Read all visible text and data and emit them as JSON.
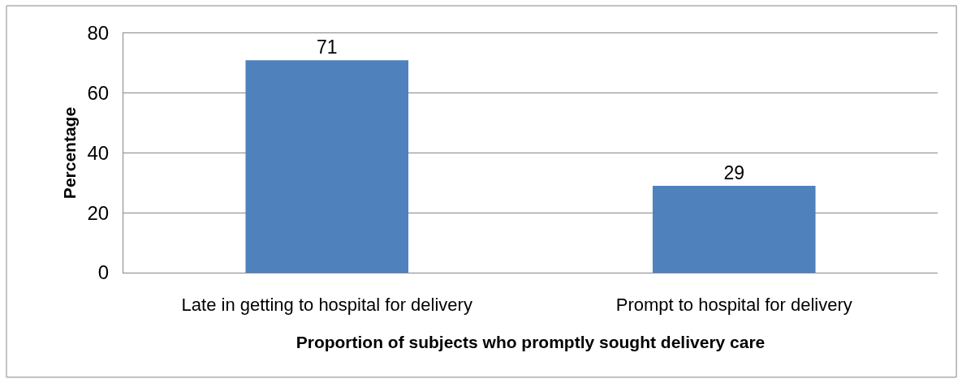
{
  "chart_data": {
    "type": "bar",
    "xlabel": "Proportion of subjects who promptly sought delivery care",
    "ylabel": "Percentage",
    "categories": [
      "Late in getting to hospital for delivery",
      "Prompt to hospital for delivery"
    ],
    "values": [
      71,
      29
    ],
    "color": "#4f81bd",
    "ylim": [
      0,
      80
    ],
    "yticks": [
      0,
      20,
      40,
      60,
      80
    ],
    "grid": "y",
    "data_labels": true
  }
}
